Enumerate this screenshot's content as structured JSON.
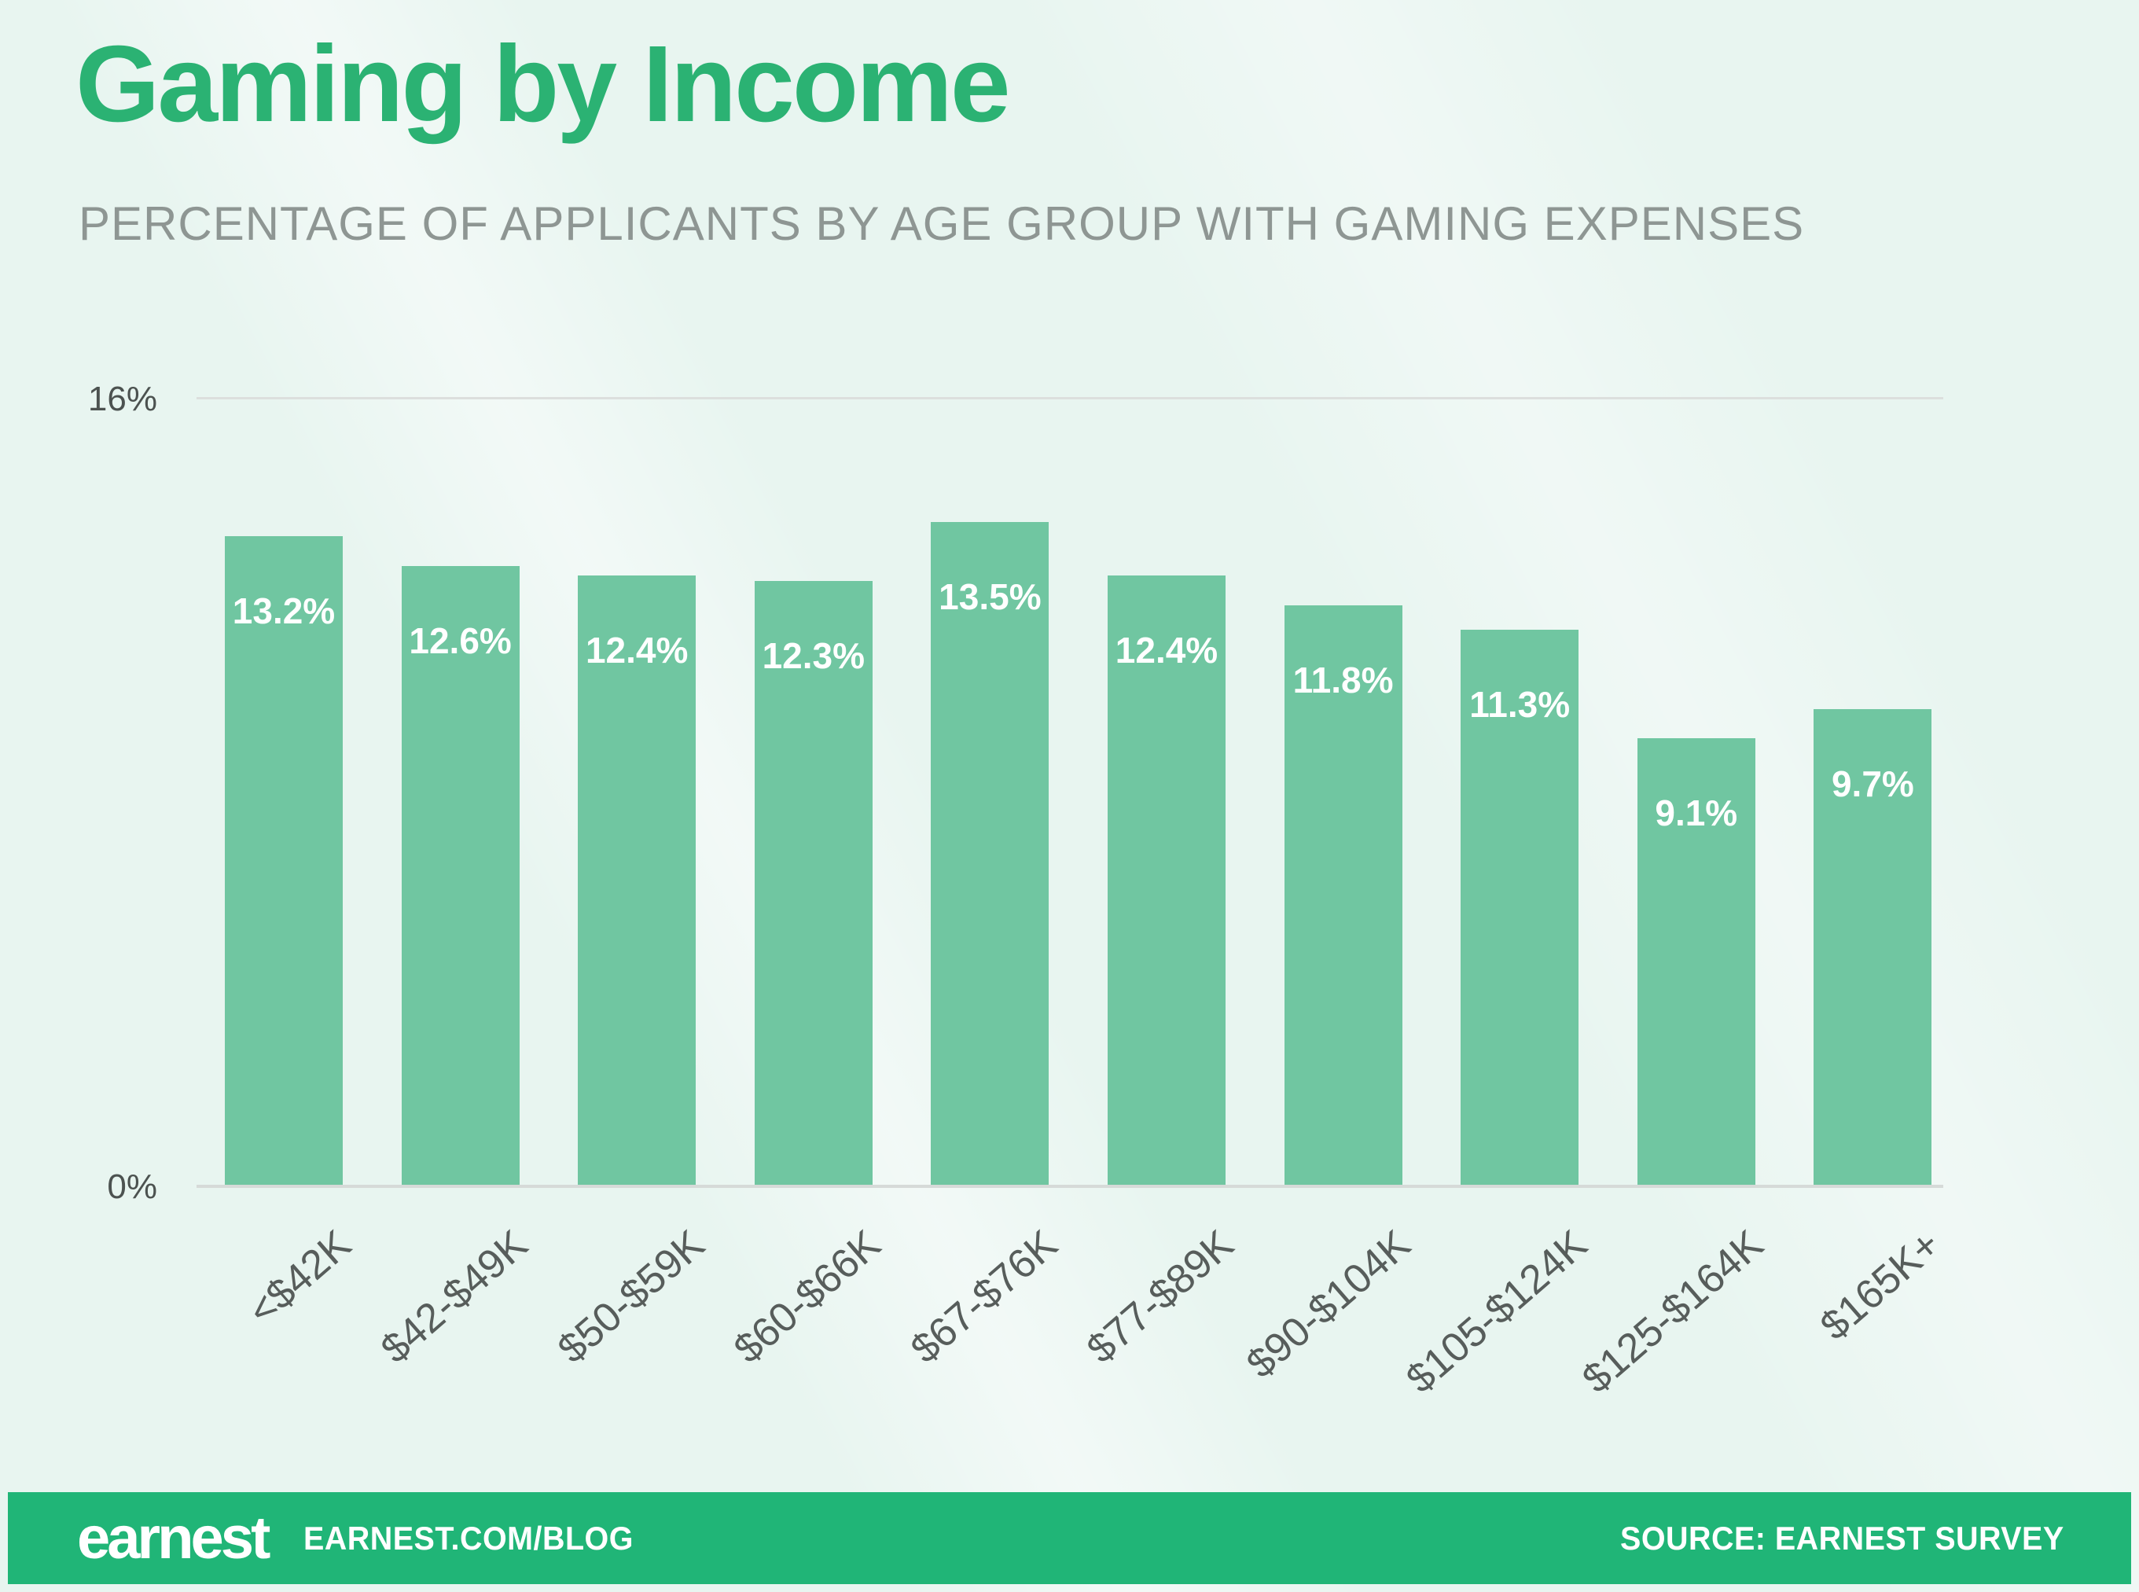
{
  "page": {
    "background_color": "#e8f5f0"
  },
  "header": {
    "title": "Gaming by Income",
    "title_color": "#2bb273",
    "subtitle": "PERCENTAGE OF APPLICANTS BY AGE GROUP WITH GAMING EXPENSES",
    "subtitle_color": "#8e9693"
  },
  "chart_data": {
    "type": "bar",
    "title": "Gaming by Income",
    "subtitle": "PERCENTAGE OF APPLICANTS BY AGE GROUP WITH GAMING EXPENSES",
    "categories": [
      "<$42K",
      "$42-$49K",
      "$50-$59K",
      "$60-$66K",
      "$67-$76K",
      "$77-$89K",
      "$90-$104K",
      "$105-$124K",
      "$125-$164K",
      "$165K+"
    ],
    "values": [
      13.2,
      12.6,
      12.4,
      12.3,
      13.5,
      12.4,
      11.8,
      11.3,
      9.1,
      9.7
    ],
    "value_labels": [
      "13.2%",
      "12.6%",
      "12.4%",
      "12.3%",
      "13.5%",
      "12.4%",
      "11.8%",
      "11.3%",
      "9.1%",
      "9.7%"
    ],
    "xlabel": "",
    "ylabel": "",
    "ylim": [
      0,
      16
    ],
    "ytick_labels": {
      "top": "16%",
      "bottom": "0%"
    },
    "grid": "top gridline at 16% only",
    "legend": "none",
    "bar_color": "#70c6a1",
    "value_label_color": "#ffffff"
  },
  "footer": {
    "background_color": "#20b577",
    "logo_text": "earnest",
    "blog_url": "EARNEST.COM/BLOG",
    "source": "SOURCE: EARNEST SURVEY"
  }
}
